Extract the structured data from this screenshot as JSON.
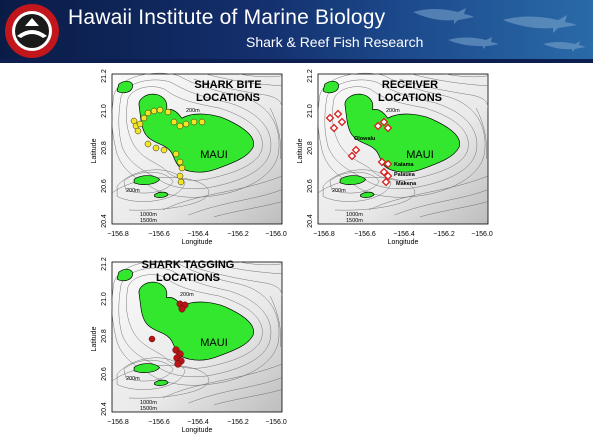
{
  "header": {
    "title": "Hawaii Institute of Marine Biology",
    "subtitle": "Shark & Reef Fish Research",
    "logo_icon": "seal-logo-icon",
    "decor_icon": "shark-silhouette-icon"
  },
  "maps": {
    "x_ticks": [
      "−156.8",
      "−156.6",
      "−156.4",
      "−156.2",
      "−156.0"
    ],
    "y_ticks": [
      "20.4",
      "20.6",
      "20.8",
      "21.0",
      "21.2"
    ],
    "xlabel": "Longitude",
    "ylabel": "Latitude",
    "island_label": "MAUI",
    "depth_200": "200m",
    "depth_1000": "1000m",
    "depth_1500": "1500m",
    "colors": {
      "land": "#33e62e",
      "bite": "#f2e526",
      "receiver": "#d8201e",
      "tagging": "#b81416",
      "contour": "#666666"
    },
    "bite": {
      "title_1": "SHARK BITE",
      "title_2": "LOCATIONS"
    },
    "receiver": {
      "title_1": "RECEIVER",
      "title_2": "LOCATIONS",
      "labels": [
        "Olowalu",
        "Kalama",
        "Palauea",
        "Makena"
      ]
    },
    "tagging": {
      "title_1": "SHARK TAGGING",
      "title_2": "LOCATIONS"
    }
  }
}
